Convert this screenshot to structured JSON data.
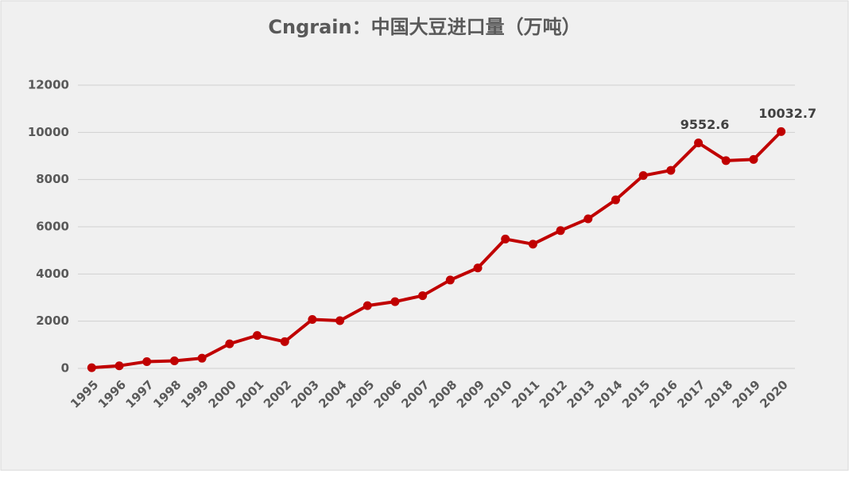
{
  "chart_data": {
    "type": "line",
    "title": "Cngrain：中国大豆进口量（万吨）",
    "categories": [
      "1995",
      "1996",
      "1997",
      "1998",
      "1999",
      "2000",
      "2001",
      "2002",
      "2003",
      "2004",
      "2005",
      "2006",
      "2007",
      "2008",
      "2009",
      "2010",
      "2011",
      "2012",
      "2013",
      "2014",
      "2015",
      "2016",
      "2017",
      "2018",
      "2019",
      "2020"
    ],
    "series": [
      {
        "name": "中国大豆进口量",
        "color": "#c00000",
        "values": [
          29.4,
          111,
          288,
          320,
          432,
          1042,
          1394,
          1132,
          2074,
          2023,
          2659,
          2827,
          3082,
          3744,
          4255,
          5480,
          5264,
          5838,
          6338,
          7140,
          8169,
          8391,
          9552.6,
          8803,
          8851,
          10032.7
        ],
        "value_labels": [
          null,
          null,
          null,
          null,
          null,
          null,
          null,
          null,
          null,
          null,
          null,
          null,
          null,
          null,
          null,
          null,
          null,
          null,
          null,
          null,
          null,
          null,
          "9552.6",
          null,
          null,
          "10032.7"
        ]
      }
    ],
    "ylim": [
      0,
      12000
    ],
    "yticks": [
      0,
      2000,
      4000,
      6000,
      8000,
      10000,
      12000
    ],
    "grid": true
  }
}
